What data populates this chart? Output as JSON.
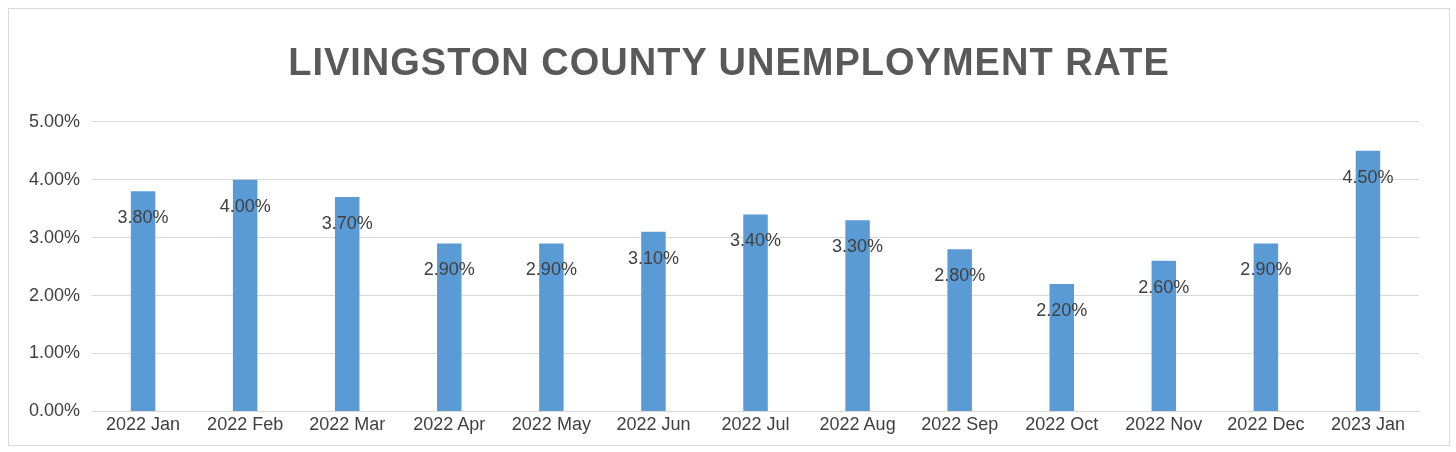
{
  "chart_data": {
    "type": "bar",
    "title": "LIVINGSTON COUNTY UNEMPLOYMENT RATE",
    "categories": [
      "2022 Jan",
      "2022 Feb",
      "2022 Mar",
      "2022 Apr",
      "2022 May",
      "2022 Jun",
      "2022 Jul",
      "2022 Aug",
      "2022 Sep",
      "2022 Oct",
      "2022 Nov",
      "2022 Dec",
      "2023 Jan"
    ],
    "values": [
      3.8,
      4.0,
      3.7,
      2.9,
      2.9,
      3.1,
      3.4,
      3.3,
      2.8,
      2.2,
      2.6,
      2.9,
      4.5
    ],
    "value_labels": [
      "3.80%",
      "4.00%",
      "3.70%",
      "2.90%",
      "2.90%",
      "3.10%",
      "3.40%",
      "3.30%",
      "2.80%",
      "2.20%",
      "2.60%",
      "2.90%",
      "4.50%"
    ],
    "color": "#5b9bd5",
    "ylim": [
      0,
      5
    ],
    "yticks": [
      {
        "value": 0,
        "label": "0.00%"
      },
      {
        "value": 1,
        "label": "1.00%"
      },
      {
        "value": 2,
        "label": "2.00%"
      },
      {
        "value": 3,
        "label": "3.00%"
      },
      {
        "value": 4,
        "label": "4.00%"
      },
      {
        "value": 5,
        "label": "5.00%"
      }
    ],
    "grid": "y",
    "legend": false
  }
}
